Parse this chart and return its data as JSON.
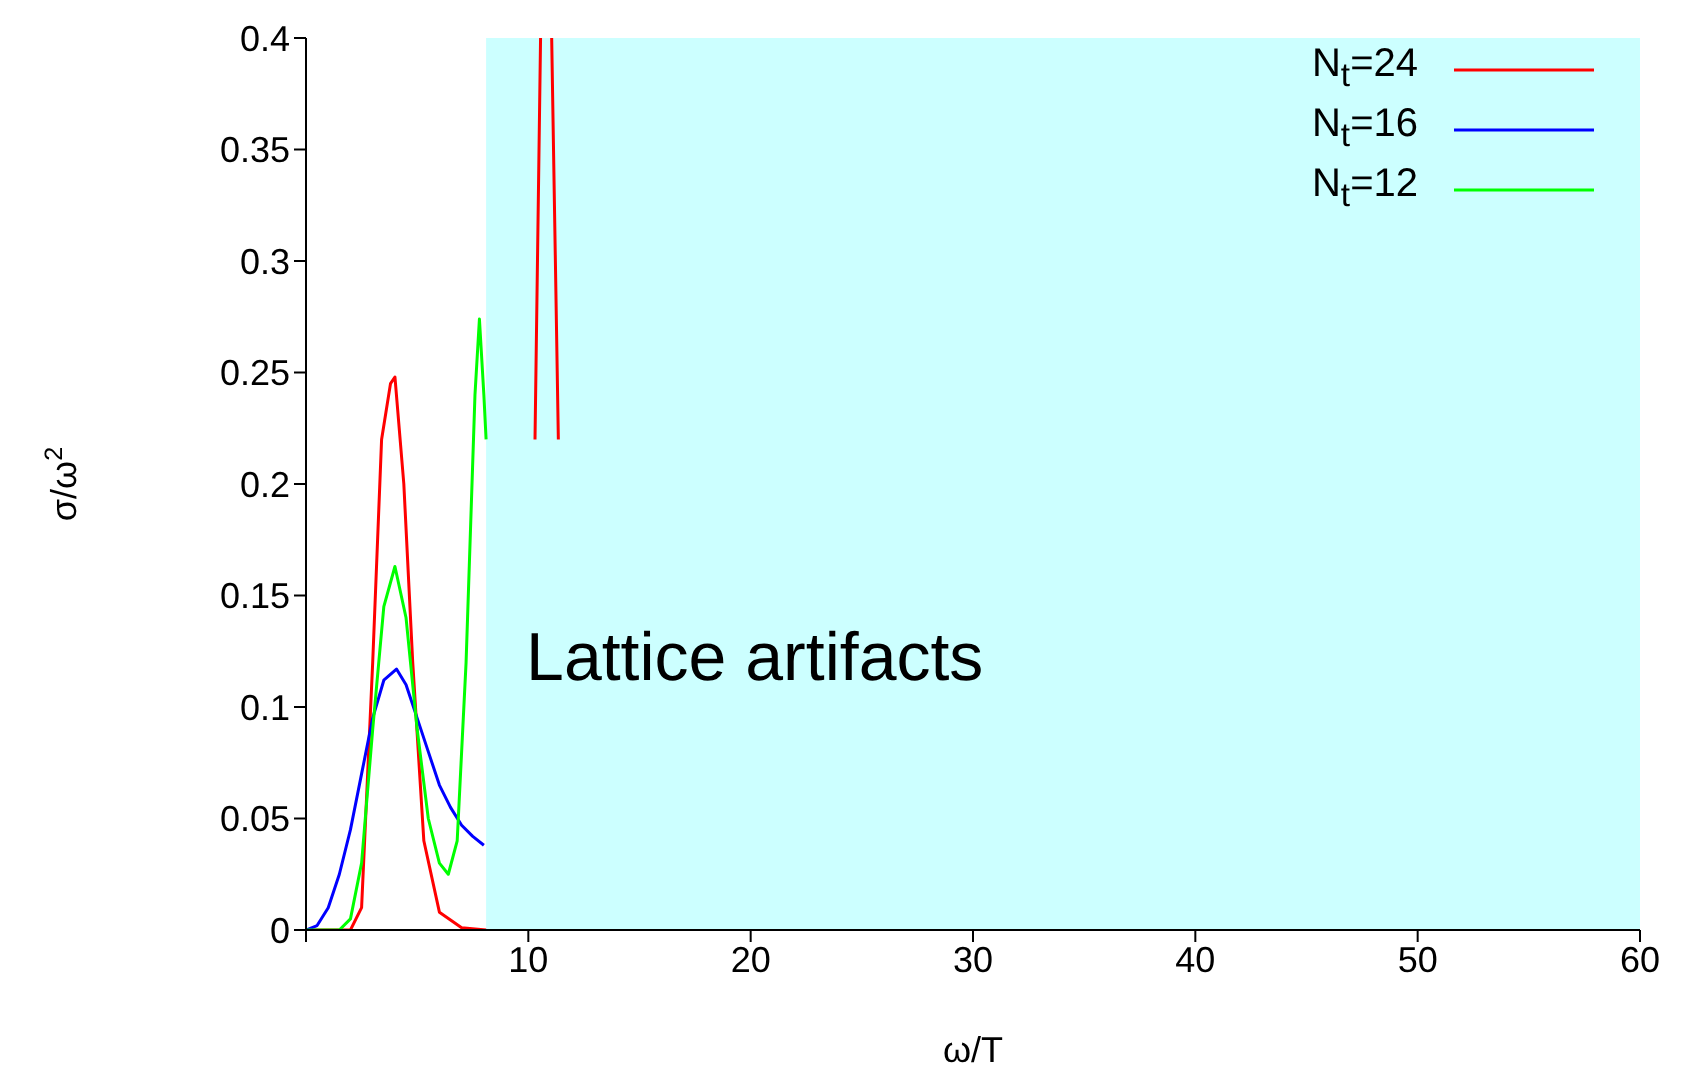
{
  "chart_data": {
    "type": "line",
    "xlabel": "ω/T",
    "ylabel": "σ/ω$^{2}$",
    "xlim": [
      0,
      60
    ],
    "xticks": [
      {
        "value": 0,
        "label": null
      },
      10,
      20,
      30,
      40,
      50,
      60
    ],
    "ylim": [
      0,
      0.4
    ],
    "yticks": [
      0,
      0.05,
      0.1,
      0.15,
      0.2,
      0.25,
      0.3,
      0.35,
      0.4
    ],
    "legend": "top right",
    "grid": false,
    "marker": "none",
    "line_style": "solid",
    "bands": [
      {
        "axis": "x",
        "from": 8.1,
        "to": 60,
        "label": "Lattice artifacts",
        "color": "#ccffff"
      }
    ],
    "series": [
      {
        "name": "N$_{t}$=24",
        "color": "#ff0000",
        "x": [
          0,
          2,
          2.5,
          3,
          3.4,
          3.8,
          4,
          4.4,
          4.8,
          5.3,
          6,
          7,
          8.1,
          9,
          10.3,
          10.55,
          10.8,
          11.05,
          11.35
        ],
        "values": [
          0,
          0,
          0.01,
          0.12,
          0.22,
          0.245,
          0.248,
          0.2,
          0.12,
          0.04,
          0.008,
          0.001,
          0,
          null,
          0.22,
          0.4,
          null,
          0.4,
          0.22
        ]
      },
      {
        "name": "N$_{t}$=16",
        "color": "#0000ff",
        "x": [
          0,
          0.5,
          1,
          1.5,
          2,
          2.5,
          3,
          3.5,
          4.07,
          4.5,
          5,
          5.5,
          6,
          6.5,
          7,
          7.5,
          8
        ],
        "values": [
          0,
          0.002,
          0.01,
          0.025,
          0.045,
          0.07,
          0.095,
          0.112,
          0.117,
          0.11,
          0.095,
          0.08,
          0.065,
          0.055,
          0.047,
          0.042,
          0.038
        ]
      },
      {
        "name": "N$_{t}$=12",
        "color": "#00ff00",
        "x": [
          0,
          1.5,
          2,
          2.5,
          3,
          3.5,
          4,
          4.5,
          5,
          5.5,
          6,
          6.4,
          6.8,
          7.2,
          7.6,
          7.8,
          8,
          8.1
        ],
        "values": [
          0,
          0,
          0.005,
          0.03,
          0.09,
          0.145,
          0.163,
          0.14,
          0.09,
          0.05,
          0.03,
          0.025,
          0.04,
          0.12,
          0.24,
          0.274,
          0.24,
          0.22
        ]
      }
    ]
  }
}
